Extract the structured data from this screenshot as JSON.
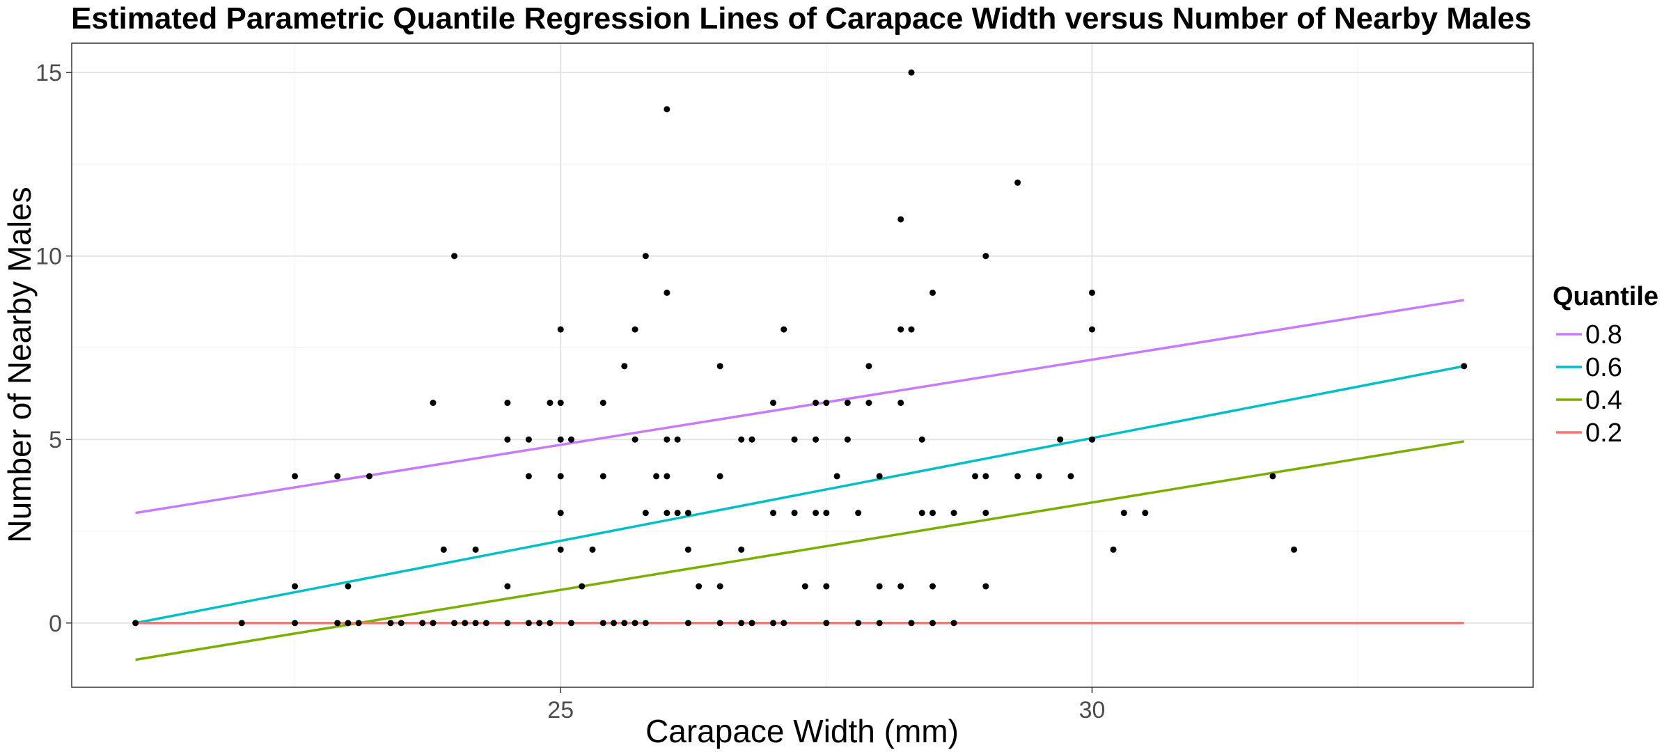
{
  "chart_data": {
    "type": "scatter",
    "title": "Estimated Parametric Quantile Regression Lines of Carapace Width versus Number of Nearby Males",
    "xlabel": "Carapace Width (mm)",
    "ylabel": "Number of Nearby Males",
    "xlim": [
      20.4,
      34.15
    ],
    "ylim": [
      -1.75,
      15.8
    ],
    "x_ticks": [
      25,
      30
    ],
    "x_minor_ticks": [
      22.5,
      27.5,
      32.5
    ],
    "y_ticks": [
      0,
      5,
      10,
      15
    ],
    "y_minor_ticks": [
      2.5,
      7.5,
      12.5
    ],
    "grid": true,
    "legend_title": "Quantile",
    "legend_position": "right",
    "point_color": "#000000",
    "lines": [
      {
        "name": "0.8",
        "color": "#C77CFF",
        "x": [
          21,
          33.5
        ],
        "y": [
          3.0,
          8.8
        ]
      },
      {
        "name": "0.6",
        "color": "#00BFC4",
        "x": [
          21,
          33.5
        ],
        "y": [
          0.0,
          7.0
        ]
      },
      {
        "name": "0.4",
        "color": "#7CAE00",
        "x": [
          21,
          33.5
        ],
        "y": [
          -1.0,
          4.95
        ]
      },
      {
        "name": "0.2",
        "color": "#F8766D",
        "x": [
          21,
          33.5
        ],
        "y": [
          0.0,
          0.0
        ]
      }
    ],
    "points": [
      [
        21.0,
        0
      ],
      [
        22.0,
        0
      ],
      [
        22.5,
        0
      ],
      [
        22.5,
        1
      ],
      [
        22.5,
        4
      ],
      [
        22.9,
        0
      ],
      [
        22.9,
        4
      ],
      [
        23.0,
        0
      ],
      [
        23.0,
        1
      ],
      [
        23.1,
        0
      ],
      [
        23.2,
        4
      ],
      [
        23.4,
        0
      ],
      [
        23.5,
        0
      ],
      [
        23.7,
        0
      ],
      [
        23.8,
        0
      ],
      [
        23.8,
        6
      ],
      [
        23.9,
        2
      ],
      [
        24.0,
        0
      ],
      [
        24.0,
        10
      ],
      [
        24.1,
        0
      ],
      [
        24.2,
        0
      ],
      [
        24.2,
        2
      ],
      [
        24.3,
        0
      ],
      [
        24.5,
        0
      ],
      [
        24.5,
        1
      ],
      [
        24.5,
        5
      ],
      [
        24.5,
        6
      ],
      [
        24.7,
        0
      ],
      [
        24.7,
        4
      ],
      [
        24.7,
        5
      ],
      [
        24.8,
        0
      ],
      [
        24.9,
        0
      ],
      [
        24.9,
        6
      ],
      [
        25.0,
        2
      ],
      [
        25.0,
        3
      ],
      [
        25.0,
        4
      ],
      [
        25.0,
        5
      ],
      [
        25.0,
        6
      ],
      [
        25.0,
        8
      ],
      [
        25.1,
        0
      ],
      [
        25.1,
        5
      ],
      [
        25.2,
        1
      ],
      [
        25.3,
        2
      ],
      [
        25.4,
        0
      ],
      [
        25.4,
        4
      ],
      [
        25.4,
        6
      ],
      [
        25.5,
        0
      ],
      [
        25.6,
        0
      ],
      [
        25.6,
        7
      ],
      [
        25.7,
        0
      ],
      [
        25.7,
        5
      ],
      [
        25.7,
        8
      ],
      [
        25.8,
        0
      ],
      [
        25.8,
        3
      ],
      [
        25.8,
        10
      ],
      [
        25.9,
        4
      ],
      [
        26.0,
        3
      ],
      [
        26.0,
        4
      ],
      [
        26.0,
        5
      ],
      [
        26.0,
        9
      ],
      [
        26.0,
        14
      ],
      [
        26.1,
        3
      ],
      [
        26.1,
        5
      ],
      [
        26.2,
        0
      ],
      [
        26.2,
        2
      ],
      [
        26.2,
        3
      ],
      [
        26.3,
        1
      ],
      [
        26.5,
        0
      ],
      [
        26.5,
        1
      ],
      [
        26.5,
        4
      ],
      [
        26.5,
        7
      ],
      [
        26.7,
        0
      ],
      [
        26.7,
        2
      ],
      [
        26.7,
        5
      ],
      [
        26.8,
        0
      ],
      [
        26.8,
        5
      ],
      [
        27.0,
        0
      ],
      [
        27.0,
        3
      ],
      [
        27.0,
        6
      ],
      [
        27.1,
        0
      ],
      [
        27.1,
        8
      ],
      [
        27.2,
        3
      ],
      [
        27.2,
        5
      ],
      [
        27.3,
        1
      ],
      [
        27.4,
        3
      ],
      [
        27.4,
        5
      ],
      [
        27.4,
        6
      ],
      [
        27.5,
        0
      ],
      [
        27.5,
        1
      ],
      [
        27.5,
        3
      ],
      [
        27.5,
        6
      ],
      [
        27.6,
        4
      ],
      [
        27.7,
        5
      ],
      [
        27.7,
        6
      ],
      [
        27.8,
        0
      ],
      [
        27.8,
        3
      ],
      [
        27.9,
        6
      ],
      [
        27.9,
        7
      ],
      [
        28.0,
        0
      ],
      [
        28.0,
        1
      ],
      [
        28.0,
        4
      ],
      [
        28.2,
        1
      ],
      [
        28.2,
        6
      ],
      [
        28.2,
        8
      ],
      [
        28.2,
        11
      ],
      [
        28.3,
        0
      ],
      [
        28.3,
        8
      ],
      [
        28.3,
        15
      ],
      [
        28.4,
        3
      ],
      [
        28.4,
        5
      ],
      [
        28.5,
        0
      ],
      [
        28.5,
        1
      ],
      [
        28.5,
        3
      ],
      [
        28.5,
        9
      ],
      [
        28.7,
        0
      ],
      [
        28.7,
        3
      ],
      [
        28.9,
        4
      ],
      [
        29.0,
        1
      ],
      [
        29.0,
        3
      ],
      [
        29.0,
        4
      ],
      [
        29.0,
        10
      ],
      [
        29.3,
        4
      ],
      [
        29.3,
        12
      ],
      [
        29.5,
        4
      ],
      [
        29.7,
        5
      ],
      [
        29.8,
        4
      ],
      [
        30.0,
        5
      ],
      [
        30.0,
        8
      ],
      [
        30.0,
        9
      ],
      [
        30.2,
        2
      ],
      [
        30.3,
        3
      ],
      [
        30.5,
        3
      ],
      [
        31.7,
        4
      ],
      [
        31.9,
        2
      ],
      [
        33.5,
        7
      ]
    ]
  }
}
